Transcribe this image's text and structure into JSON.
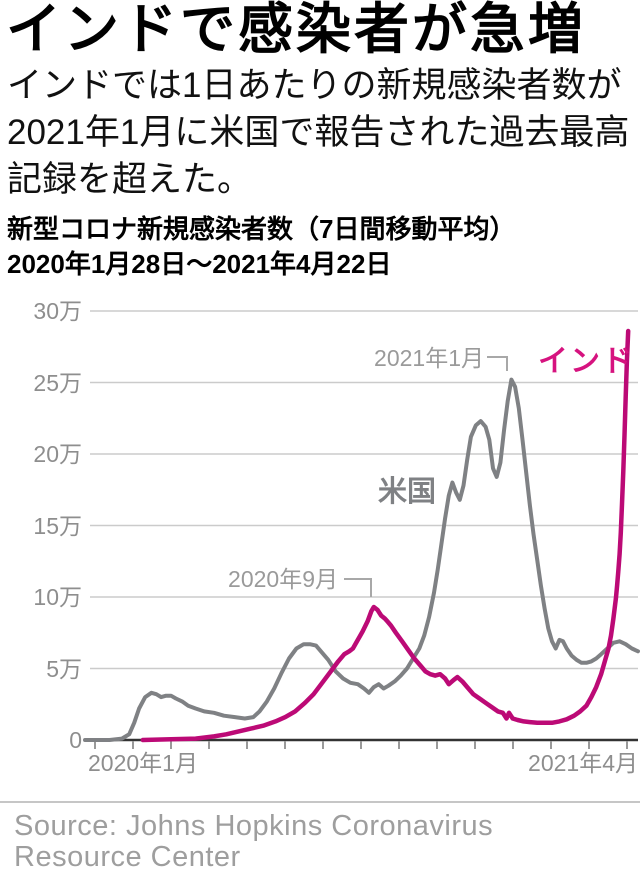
{
  "header": {
    "title": "インドで感染者が急増",
    "subtitle_line1": "インドでは1日あたりの新規感染者数が",
    "subtitle_line2": "2021年1月に米国で報告された過去最高",
    "subtitle_line3": "記録を超えた。"
  },
  "chart": {
    "heading_line1": "新型コロナ新規感染者数（7日間移動平均）",
    "heading_line2": "2020年1月28日〜2021年4月22日",
    "y_ticks": [
      {
        "label": "30万",
        "value": 30
      },
      {
        "label": "25万",
        "value": 25
      },
      {
        "label": "20万",
        "value": 20
      },
      {
        "label": "15万",
        "value": 15
      },
      {
        "label": "10万",
        "value": 10
      },
      {
        "label": "5万",
        "value": 5
      },
      {
        "label": "0",
        "value": 0
      }
    ],
    "x_label_start": "2020年1月",
    "x_label_end": "2021年4月",
    "annotation_september": "2020年9月",
    "annotation_january": "2021年1月",
    "label_us": "米国",
    "label_india": "インド",
    "colors": {
      "us_line": "#7f8184",
      "india_line": "#bc0a76",
      "india_label": "#d6137f",
      "gridline": "#cbcbcb",
      "axis": "#333333",
      "tick": "#9a9a9a",
      "annotation": "#a8a8a8"
    }
  },
  "chart_data": {
    "type": "line",
    "title": "新型コロナ新規感染者数（7日間移動平均）",
    "date_range": "2020年1月28日〜2021年4月22日",
    "x_unit": "days since 2020-01-28",
    "x_range": [
      0,
      450
    ],
    "y_unit": "万 (10,000 new cases per day, 7-day moving average)",
    "ylim": [
      0,
      30
    ],
    "y_tick_values": [
      0,
      5,
      10,
      15,
      20,
      25,
      30
    ],
    "grid": true,
    "legend_position": "inline-labels",
    "series": [
      {
        "name": "米国",
        "key": "us",
        "color": "#7f8184",
        "points": [
          [
            0,
            0
          ],
          [
            20,
            0
          ],
          [
            30,
            0.1
          ],
          [
            36,
            0.4
          ],
          [
            40,
            1.2
          ],
          [
            44,
            2.2
          ],
          [
            49,
            3.0
          ],
          [
            54,
            3.3
          ],
          [
            58,
            3.2
          ],
          [
            62,
            3.0
          ],
          [
            66,
            3.1
          ],
          [
            70,
            3.1
          ],
          [
            74,
            2.9
          ],
          [
            79,
            2.7
          ],
          [
            84,
            2.4
          ],
          [
            90,
            2.2
          ],
          [
            97,
            2.0
          ],
          [
            105,
            1.9
          ],
          [
            113,
            1.7
          ],
          [
            122,
            1.6
          ],
          [
            130,
            1.5
          ],
          [
            137,
            1.6
          ],
          [
            142,
            2.0
          ],
          [
            148,
            2.7
          ],
          [
            154,
            3.6
          ],
          [
            160,
            4.7
          ],
          [
            166,
            5.7
          ],
          [
            172,
            6.4
          ],
          [
            178,
            6.7
          ],
          [
            183,
            6.7
          ],
          [
            188,
            6.6
          ],
          [
            193,
            6.1
          ],
          [
            198,
            5.6
          ],
          [
            204,
            4.8
          ],
          [
            210,
            4.3
          ],
          [
            216,
            4.0
          ],
          [
            222,
            3.9
          ],
          [
            227,
            3.6
          ],
          [
            231,
            3.3
          ],
          [
            235,
            3.7
          ],
          [
            239,
            3.9
          ],
          [
            243,
            3.6
          ],
          [
            247,
            3.8
          ],
          [
            252,
            4.1
          ],
          [
            257,
            4.5
          ],
          [
            262,
            5.0
          ],
          [
            267,
            5.7
          ],
          [
            272,
            6.4
          ],
          [
            276,
            7.3
          ],
          [
            280,
            8.6
          ],
          [
            284,
            10.3
          ],
          [
            287,
            11.9
          ],
          [
            290,
            13.7
          ],
          [
            293,
            15.5
          ],
          [
            296,
            17.1
          ],
          [
            299,
            18.0
          ],
          [
            302,
            17.3
          ],
          [
            305,
            16.8
          ],
          [
            308,
            17.8
          ],
          [
            311,
            19.6
          ],
          [
            314,
            21.2
          ],
          [
            318,
            22.0
          ],
          [
            322,
            22.3
          ],
          [
            326,
            21.9
          ],
          [
            329,
            21.0
          ],
          [
            332,
            19.0
          ],
          [
            335,
            18.4
          ],
          [
            338,
            19.4
          ],
          [
            341,
            21.7
          ],
          [
            344,
            23.7
          ],
          [
            347,
            25.2
          ],
          [
            350,
            24.7
          ],
          [
            353,
            23.2
          ],
          [
            356,
            21.0
          ],
          [
            359,
            18.7
          ],
          [
            362,
            16.4
          ],
          [
            365,
            14.4
          ],
          [
            368,
            12.6
          ],
          [
            371,
            10.8
          ],
          [
            374,
            9.2
          ],
          [
            377,
            7.8
          ],
          [
            380,
            6.9
          ],
          [
            383,
            6.4
          ],
          [
            386,
            7.0
          ],
          [
            389,
            6.9
          ],
          [
            392,
            6.4
          ],
          [
            396,
            5.9
          ],
          [
            400,
            5.6
          ],
          [
            404,
            5.4
          ],
          [
            408,
            5.4
          ],
          [
            412,
            5.5
          ],
          [
            416,
            5.7
          ],
          [
            420,
            6.0
          ],
          [
            425,
            6.4
          ],
          [
            430,
            6.8
          ],
          [
            435,
            6.9
          ],
          [
            440,
            6.7
          ],
          [
            445,
            6.4
          ],
          [
            450,
            6.2
          ]
        ]
      },
      {
        "name": "インド",
        "key": "india",
        "color": "#bc0a76",
        "points": [
          [
            47,
            0
          ],
          [
            70,
            0.05
          ],
          [
            90,
            0.1
          ],
          [
            105,
            0.25
          ],
          [
            115,
            0.4
          ],
          [
            125,
            0.6
          ],
          [
            135,
            0.8
          ],
          [
            145,
            1.0
          ],
          [
            155,
            1.3
          ],
          [
            163,
            1.6
          ],
          [
            171,
            2.0
          ],
          [
            179,
            2.6
          ],
          [
            186,
            3.2
          ],
          [
            193,
            4.0
          ],
          [
            200,
            4.8
          ],
          [
            206,
            5.5
          ],
          [
            211,
            6.0
          ],
          [
            215,
            6.2
          ],
          [
            218,
            6.4
          ],
          [
            222,
            7.0
          ],
          [
            226,
            7.6
          ],
          [
            230,
            8.3
          ],
          [
            233,
            9.0
          ],
          [
            235,
            9.3
          ],
          [
            238,
            9.1
          ],
          [
            241,
            8.7
          ],
          [
            244,
            8.5
          ],
          [
            246,
            8.3
          ],
          [
            249,
            8.0
          ],
          [
            253,
            7.5
          ],
          [
            258,
            6.9
          ],
          [
            263,
            6.3
          ],
          [
            268,
            5.7
          ],
          [
            273,
            5.2
          ],
          [
            277,
            4.8
          ],
          [
            281,
            4.6
          ],
          [
            285,
            4.5
          ],
          [
            289,
            4.6
          ],
          [
            293,
            4.3
          ],
          [
            296,
            3.9
          ],
          [
            300,
            4.2
          ],
          [
            303,
            4.4
          ],
          [
            307,
            4.1
          ],
          [
            311,
            3.7
          ],
          [
            316,
            3.2
          ],
          [
            321,
            2.9
          ],
          [
            326,
            2.6
          ],
          [
            331,
            2.3
          ],
          [
            336,
            2.0
          ],
          [
            340,
            1.9
          ],
          [
            343,
            1.5
          ],
          [
            345,
            1.9
          ],
          [
            348,
            1.5
          ],
          [
            352,
            1.4
          ],
          [
            357,
            1.3
          ],
          [
            362,
            1.25
          ],
          [
            368,
            1.2
          ],
          [
            374,
            1.2
          ],
          [
            380,
            1.2
          ],
          [
            386,
            1.3
          ],
          [
            392,
            1.45
          ],
          [
            398,
            1.7
          ],
          [
            403,
            2.0
          ],
          [
            408,
            2.4
          ],
          [
            412,
            3.0
          ],
          [
            416,
            3.7
          ],
          [
            420,
            4.6
          ],
          [
            423,
            5.5
          ],
          [
            426,
            6.4
          ],
          [
            428,
            7.3
          ],
          [
            430,
            8.5
          ],
          [
            432,
            9.9
          ],
          [
            433,
            10.8
          ],
          [
            434,
            11.8
          ],
          [
            435,
            13.0
          ],
          [
            436,
            14.5
          ],
          [
            437,
            16.5
          ],
          [
            438,
            18.8
          ],
          [
            439,
            21.3
          ],
          [
            440,
            24.0
          ],
          [
            441,
            26.5
          ],
          [
            442,
            28.6
          ]
        ]
      }
    ],
    "annotations": [
      {
        "text": "2020年9月",
        "series": "インド",
        "x": 235,
        "y": 9.3
      },
      {
        "text": "2021年1月",
        "series": "米国",
        "x": 347,
        "y": 25.2
      }
    ]
  },
  "source": {
    "text": "Source: Johns Hopkins Coronavirus Resource Center"
  }
}
